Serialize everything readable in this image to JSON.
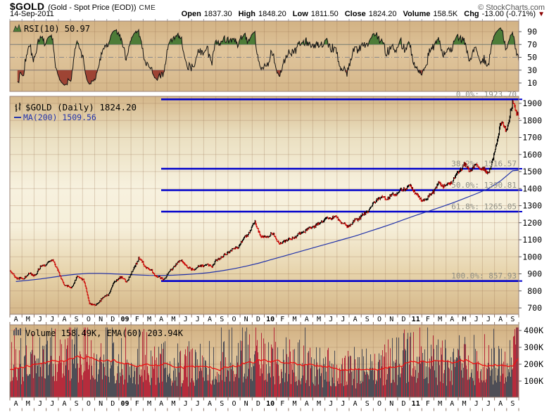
{
  "header": {
    "symbol": "$GOLD",
    "name": "(Gold - Spot Price (EOD))",
    "exchange": "CME",
    "copyright": "© StockCharts.com",
    "date": "14-Sep-2011",
    "quote": [
      {
        "label": "Open",
        "value": "1837.30"
      },
      {
        "label": "High",
        "value": "1848.20"
      },
      {
        "label": "Low",
        "value": "1811.50"
      },
      {
        "label": "Close",
        "value": "1824.20"
      },
      {
        "label": "Volume",
        "value": "158.5K"
      },
      {
        "label": "Chg",
        "value": "-13.00 (-0.71%)"
      }
    ],
    "change_direction": "▼"
  },
  "chart_data": {
    "type": "ohlc",
    "title": "$GOLD (Daily)",
    "x_axis": {
      "months": [
        "A",
        "M",
        "J",
        "J",
        "A",
        "S",
        "O",
        "N",
        "D",
        "09",
        "F",
        "M",
        "A",
        "M",
        "J",
        "J",
        "A",
        "S",
        "O",
        "N",
        "D",
        "10",
        "F",
        "M",
        "A",
        "M",
        "J",
        "J",
        "A",
        "S",
        "O",
        "N",
        "D",
        "11",
        "F",
        "M",
        "A",
        "M",
        "J",
        "J",
        "A",
        "S"
      ],
      "year_labels": [
        "09",
        "10",
        "11"
      ]
    },
    "panels": {
      "rsi": {
        "legend": "RSI(10) 50.97",
        "current": 50.97,
        "overbought": 70,
        "midline": 50,
        "oversold": 30,
        "axis_ticks": [
          90,
          70,
          50,
          30,
          10
        ]
      },
      "price": {
        "legend": "$GOLD (Daily) 1824.20",
        "ma_legend": "MA(200) 1509.56",
        "last_close": 1824.2,
        "ma200_last": 1509.56,
        "ylim": [
          663,
          1941
        ],
        "axis_ticks": [
          1900,
          1800,
          1700,
          1600,
          1500,
          1400,
          1300,
          1200,
          1100,
          1000,
          900,
          800,
          700
        ],
        "fib_retracements": [
          {
            "label": "0.0%: 1923.70",
            "value": 1923.7
          },
          {
            "label": "38.2%: 1516.57",
            "value": 1516.57
          },
          {
            "label": "50.0%: 1390.81",
            "value": 1390.81
          },
          {
            "label": "61.8%: 1265.05",
            "value": 1265.05
          },
          {
            "label": "100.0%: 857.93",
            "value": 857.93
          }
        ],
        "close_anchors": [
          910,
          880,
          870,
          900,
          890,
          935,
          960,
          985,
          905,
          830,
          815,
          880,
          870,
          730,
          715,
          755,
          775,
          845,
          885,
          855,
          915,
          990,
          945,
          920,
          885,
          870,
          905,
          950,
          980,
          935,
          930,
          950,
          948,
          945,
          990,
          1010,
          1040,
          1050,
          1095,
          1140,
          1210,
          1115,
          1120,
          1130,
          1065,
          1105,
          1110,
          1125,
          1150,
          1165,
          1185,
          1220,
          1225,
          1240,
          1200,
          1175,
          1205,
          1235,
          1255,
          1295,
          1340,
          1345,
          1355,
          1375,
          1390,
          1415,
          1385,
          1335,
          1340,
          1385,
          1425,
          1410,
          1440,
          1490,
          1545,
          1505,
          1530,
          1515,
          1495,
          1600,
          1790,
          1740,
          1895,
          1824
        ],
        "ma200_anchors": [
          855,
          862,
          870,
          880,
          890,
          898,
          903,
          903,
          900,
          897,
          894,
          891,
          890,
          892,
          896,
          901,
          908,
          918,
          930,
          945,
          962,
          982,
          1002,
          1022,
          1042,
          1062,
          1082,
          1102,
          1122,
          1145,
          1168,
          1192,
          1218,
          1243,
          1266,
          1290,
          1315,
          1342,
          1370,
          1400,
          1445,
          1505
        ]
      },
      "volume": {
        "legend": "Volume 158.49K, EMA(60) 203.94K",
        "current_k": 158.49,
        "ema60_k": 203.94,
        "axis_ticks": [
          "400K",
          "300K",
          "200K",
          "100K"
        ],
        "base_anchors_k": [
          185,
          175,
          170,
          180,
          200,
          215,
          205,
          185,
          175,
          170,
          165,
          160,
          150,
          145,
          145,
          150,
          155,
          165,
          185,
          195,
          190,
          175,
          165,
          160,
          150,
          145,
          140,
          130,
          128,
          135,
          150,
          175,
          180,
          170,
          175,
          165,
          165,
          170,
          175,
          150,
          165,
          205
        ]
      }
    }
  },
  "colors": {
    "fib_line": "#0000cc",
    "fib_label": "#8f8f85",
    "ma_line": "#2233aa",
    "bar_up": "#000000",
    "bar_down": "#cc0000",
    "vol_bar_dark": "#4e4e56",
    "vol_bar_red": "#b62c3c",
    "ema_line": "#ee1111",
    "rsi_line": "#111111",
    "rsi_fill_high": "#4d7c38",
    "rsi_fill_low": "#9e4434",
    "panel_border": "#9a8175",
    "grid": "rgba(150,110,80,0.28)",
    "rsi_level": "#7b7b7b",
    "axis_text": "#000000",
    "change_arrow": "#8b0000"
  }
}
